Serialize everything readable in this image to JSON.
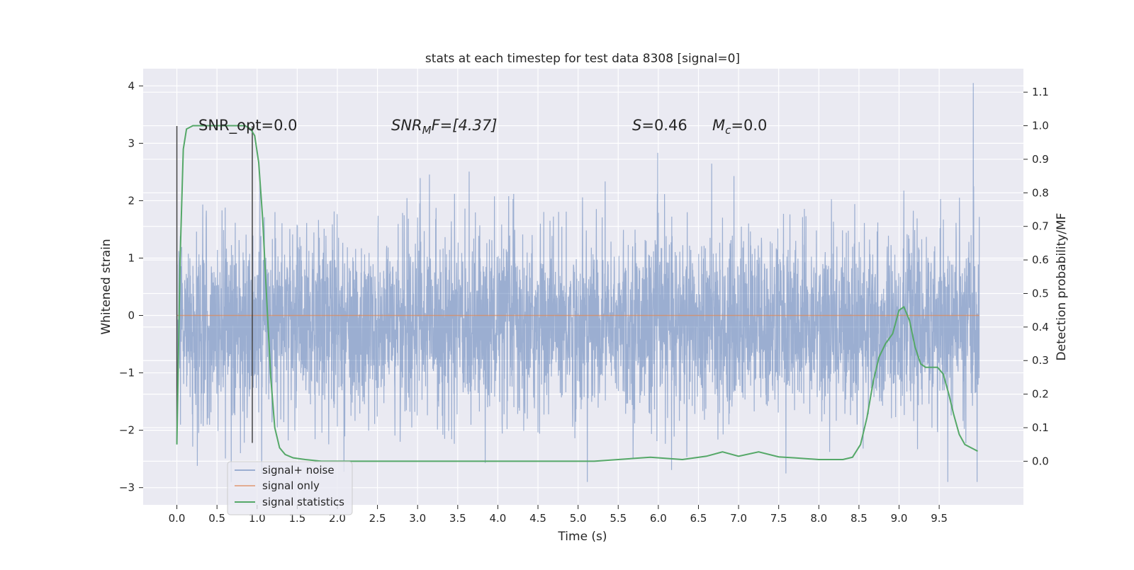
{
  "chart_data": {
    "type": "line",
    "title": "stats at each timestep for test data 8308 [signal=0]",
    "xlabel": "Time (s)",
    "ylabel": "Whitened strain",
    "y2label": "Detection probability/MF",
    "xlim": [
      -0.42,
      10.55
    ],
    "ylim": [
      -3.3,
      4.3
    ],
    "y2lim": [
      -0.13,
      1.17
    ],
    "x_ticks": [
      0.0,
      0.5,
      1.0,
      1.5,
      2.0,
      2.5,
      3.0,
      3.5,
      4.0,
      4.5,
      5.0,
      5.5,
      6.0,
      6.5,
      7.0,
      7.5,
      8.0,
      8.5,
      9.0,
      9.5
    ],
    "x_tick_labels": [
      "0.0",
      "0.5",
      "1.0",
      "1.5",
      "2.0",
      "2.5",
      "3.0",
      "3.5",
      "4.0",
      "4.5",
      "5.0",
      "5.5",
      "6.0",
      "6.5",
      "7.0",
      "7.5",
      "8.0",
      "8.5",
      "9.0",
      "9.5"
    ],
    "y_ticks": [
      -3,
      -2,
      -1,
      0,
      1,
      2,
      3,
      4
    ],
    "y_tick_labels": [
      "−3",
      "−2",
      "−1",
      "0",
      "1",
      "2",
      "3",
      "4"
    ],
    "y2_ticks": [
      0.0,
      0.1,
      0.2,
      0.3,
      0.4,
      0.5,
      0.6,
      0.7,
      0.8,
      0.9,
      1.0,
      1.1
    ],
    "y2_tick_labels": [
      "0.0",
      "0.1",
      "0.2",
      "0.3",
      "0.4",
      "0.5",
      "0.6",
      "0.7",
      "0.8",
      "0.9",
      "1.0",
      "1.1"
    ],
    "grid": true,
    "legend_position": "lower-left",
    "annotations": {
      "snr_opt": "SNR_opt=0.0",
      "snr_mf_symbol": "SNR",
      "snr_mf_sub": "M",
      "snr_mf_rest": "F=[4.37]",
      "s_symbol": "S",
      "s_rest": "=0.46",
      "mc_symbol": "M",
      "mc_sub": "c",
      "mc_rest": "=0.0"
    },
    "series": [
      {
        "name": "signal+ noise",
        "color": "#4c72b0",
        "x_range": [
          0.0,
          10.0
        ],
        "description_values": {
          "approx_band": [
            -1.7,
            1.3
          ],
          "max_spike": 4.05,
          "max_spike_x": 9.98,
          "min_spike": -2.95
        }
      },
      {
        "name": "signal only",
        "color": "#dd8452",
        "x": [
          0.0,
          10.0
        ],
        "y": [
          0.0,
          0.0
        ]
      },
      {
        "name": "signal statistics",
        "color": "#55a868",
        "axis": "right",
        "x": [
          0.0,
          0.04,
          0.08,
          0.12,
          0.2,
          0.3,
          0.45,
          0.6,
          0.75,
          0.85,
          0.92,
          0.97,
          1.02,
          1.07,
          1.12,
          1.17,
          1.22,
          1.28,
          1.35,
          1.45,
          1.6,
          1.8,
          2.0,
          2.2,
          2.5,
          3.0,
          3.5,
          4.0,
          4.2,
          4.5,
          5.0,
          5.2,
          5.5,
          5.9,
          6.3,
          6.6,
          6.8,
          7.0,
          7.25,
          7.5,
          7.7,
          8.0,
          8.3,
          8.42,
          8.52,
          8.6,
          8.68,
          8.75,
          8.83,
          8.92,
          9.0,
          9.06,
          9.13,
          9.2,
          9.27,
          9.33,
          9.4,
          9.48,
          9.55,
          9.62,
          9.68,
          9.75,
          9.82,
          9.9,
          9.98
        ],
        "y": [
          0.05,
          0.6,
          0.93,
          0.99,
          1.0,
          1.0,
          1.0,
          1.0,
          1.0,
          1.0,
          0.99,
          0.97,
          0.89,
          0.72,
          0.48,
          0.25,
          0.1,
          0.04,
          0.02,
          0.01,
          0.005,
          0.0,
          0.0,
          0.0,
          0.0,
          0.0,
          0.0,
          0.0,
          0.0,
          0.0,
          0.0,
          0.0,
          0.005,
          0.012,
          0.005,
          0.015,
          0.028,
          0.015,
          0.028,
          0.013,
          0.01,
          0.005,
          0.005,
          0.012,
          0.05,
          0.13,
          0.24,
          0.31,
          0.35,
          0.38,
          0.45,
          0.46,
          0.42,
          0.34,
          0.29,
          0.28,
          0.28,
          0.28,
          0.26,
          0.2,
          0.14,
          0.08,
          0.05,
          0.04,
          0.03
        ]
      }
    ],
    "vertical_markers": [
      0.0,
      0.94
    ]
  }
}
